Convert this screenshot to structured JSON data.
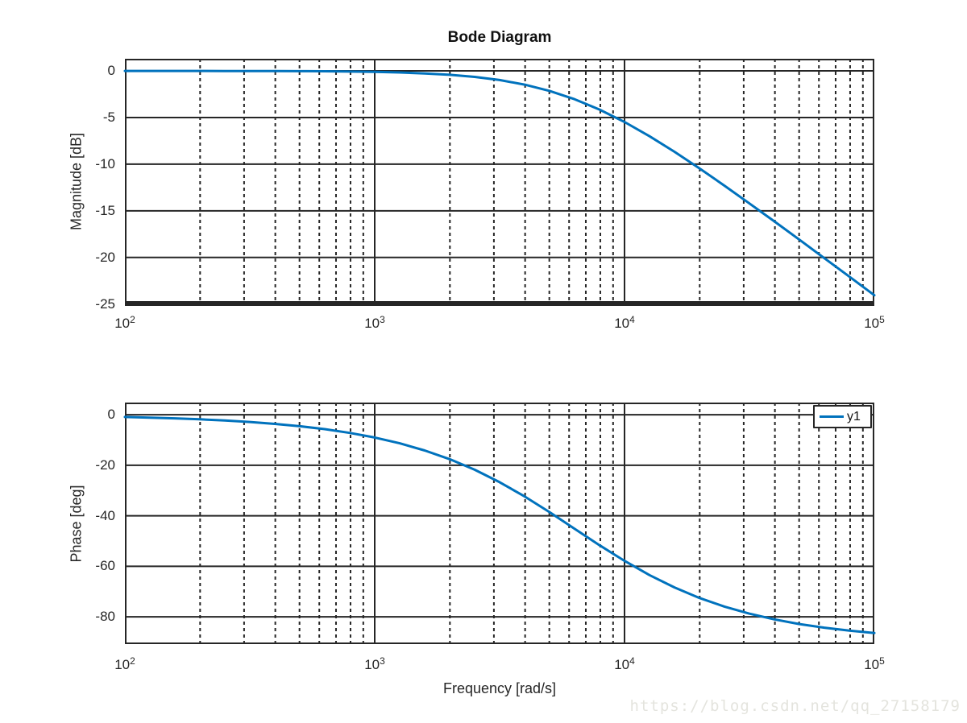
{
  "figure": {
    "title": "Bode Diagram",
    "xlabel": "Frequency [rad/s]",
    "watermark": "https://blog.csdn.net/qq_27158179",
    "legend": {
      "label": "y1",
      "line_color": "#0072BD"
    }
  },
  "colors": {
    "curve": "#0072BD",
    "grid": "#262626",
    "axis_text": "#262626",
    "watermark": "#e4e4de",
    "background": "#ffffff"
  },
  "chart_data": [
    {
      "type": "line",
      "title": "Bode Diagram",
      "ylabel": "Magnitude [dB]",
      "xlabel": "",
      "xscale": "log",
      "xlim": [
        100,
        100000
      ],
      "ylim": [
        -25.2,
        1.3
      ],
      "xtick_exponents": [
        2,
        3,
        4,
        5
      ],
      "yticks": [
        0,
        -5,
        -10,
        -15,
        -20,
        -25
      ],
      "grid": true,
      "legend_position": "none",
      "series": [
        {
          "name": "y1",
          "color": "#0072BD",
          "x": [
            100,
            125.9,
            158.5,
            199.5,
            251.2,
            316.2,
            398.1,
            501.2,
            631,
            794.3,
            1000,
            1258.9,
            1584.9,
            1995.3,
            2511.9,
            3162.3,
            3981.1,
            5011.9,
            6309.6,
            7943.3,
            10000,
            12589,
            15849,
            19953,
            25119,
            31623,
            39811,
            50119,
            63096,
            79433,
            100000
          ],
          "y": [
            0.0,
            0.0,
            0.0,
            0.0,
            -0.01,
            -0.01,
            -0.02,
            -0.03,
            -0.04,
            -0.07,
            -0.11,
            -0.17,
            -0.27,
            -0.42,
            -0.64,
            -0.98,
            -1.47,
            -2.14,
            -3.03,
            -4.15,
            -5.48,
            -7.0,
            -8.67,
            -10.45,
            -12.3,
            -14.21,
            -16.14,
            -18.1,
            -20.08,
            -22.06,
            -24.05
          ]
        }
      ]
    },
    {
      "type": "line",
      "title": "",
      "ylabel": "Phase [deg]",
      "xlabel": "Frequency [rad/s]",
      "xscale": "log",
      "xlim": [
        100,
        100000
      ],
      "ylim": [
        -90.8,
        4.8
      ],
      "xtick_exponents": [
        2,
        3,
        4,
        5
      ],
      "yticks": [
        0,
        -20,
        -40,
        -60,
        -80
      ],
      "grid": true,
      "legend_position": "northeast",
      "series": [
        {
          "name": "y1",
          "color": "#0072BD",
          "x": [
            100,
            125.9,
            158.5,
            199.5,
            251.2,
            316.2,
            398.1,
            501.2,
            631,
            794.3,
            1000,
            1258.9,
            1584.9,
            1995.3,
            2511.9,
            3162.3,
            3981.1,
            5011.9,
            6309.6,
            7943.3,
            10000,
            12589,
            15849,
            19953,
            25119,
            31623,
            39811,
            50119,
            63096,
            79433,
            100000
          ],
          "y": [
            -0.91,
            -1.15,
            -1.44,
            -1.82,
            -2.29,
            -2.88,
            -3.63,
            -4.56,
            -5.73,
            -7.21,
            -9.04,
            -11.33,
            -14.16,
            -17.61,
            -21.79,
            -26.71,
            -32.35,
            -38.58,
            -45.12,
            -51.66,
            -57.86,
            -63.48,
            -68.38,
            -72.53,
            -75.96,
            -78.76,
            -81.03,
            -82.85,
            -84.31,
            -85.48,
            -86.4
          ]
        }
      ]
    }
  ]
}
